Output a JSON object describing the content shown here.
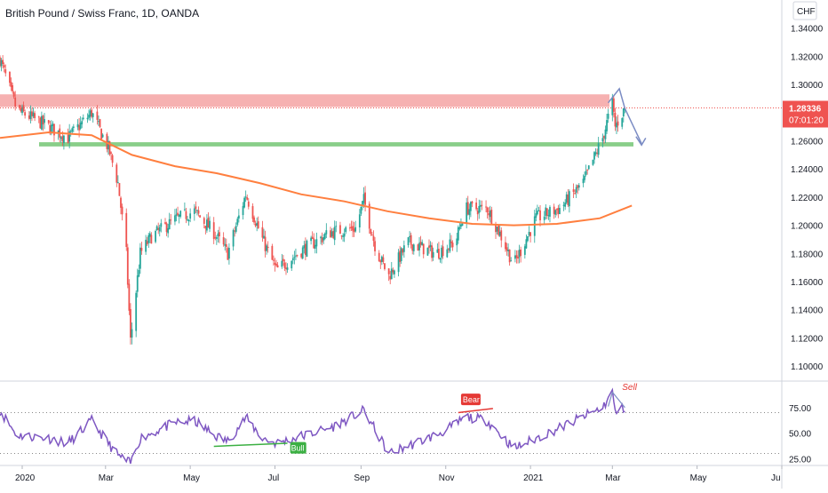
{
  "header": {
    "title": "British Pound / Swiss Franc, 1D, OANDA"
  },
  "price_axis": {
    "currency": "CHF",
    "tick_labels": [
      "1.34000",
      "1.32000",
      "1.30000",
      "1.28000",
      "1.26000",
      "1.24000",
      "1.22000",
      "1.20000",
      "1.18000",
      "1.16000",
      "1.14000",
      "1.12000",
      "1.10000"
    ],
    "current_price": "1.28336",
    "countdown": "07:01:20"
  },
  "rsi_axis": {
    "tick_labels": [
      "75.00",
      "50.00",
      "25.00"
    ]
  },
  "time_axis": {
    "labels": [
      "2020",
      "Mar",
      "May",
      "Jul",
      "Sep",
      "Nov",
      "2021",
      "Mar",
      "May",
      "Ju"
    ]
  },
  "annotations": {
    "bear": "Bear",
    "bull": "Bull",
    "sell": "Sell"
  },
  "colors": {
    "up": "#26a69a",
    "down": "#ef5350",
    "ma": "#ff7f3f",
    "resistance_zone": "#f5a3a3",
    "support_zone": "#7cc97c",
    "rsi": "#7e57c2",
    "arrow": "#7b8cc4",
    "price_tag": "#ef5350"
  },
  "chart_data": [
    {
      "type": "candlestick",
      "title": "British Pound / Swiss Franc, 1D, OANDA",
      "x": [
        "2020-01",
        "2020-03",
        "2020-05",
        "2020-07",
        "2020-09",
        "2020-11",
        "2021-01",
        "2021-03"
      ],
      "price_path": [
        {
          "date": "2019-12-16",
          "close": 1.318
        },
        {
          "date": "2019-12-28",
          "close": 1.282
        },
        {
          "date": "2020-01-20",
          "close": 1.27
        },
        {
          "date": "2020-02-03",
          "close": 1.262
        },
        {
          "date": "2020-02-20",
          "close": 1.28
        },
        {
          "date": "2020-03-03",
          "close": 1.255
        },
        {
          "date": "2020-03-10",
          "close": 1.23
        },
        {
          "date": "2020-03-16",
          "close": 1.18
        },
        {
          "date": "2020-03-19",
          "close": 1.118
        },
        {
          "date": "2020-03-26",
          "close": 1.18
        },
        {
          "date": "2020-04-03",
          "close": 1.192
        },
        {
          "date": "2020-04-20",
          "close": 1.204
        },
        {
          "date": "2020-05-04",
          "close": 1.21
        },
        {
          "date": "2020-05-18",
          "close": 1.195
        },
        {
          "date": "2020-05-28",
          "close": 1.18
        },
        {
          "date": "2020-06-10",
          "close": 1.222
        },
        {
          "date": "2020-06-22",
          "close": 1.19
        },
        {
          "date": "2020-07-02",
          "close": 1.168
        },
        {
          "date": "2020-07-20",
          "close": 1.182
        },
        {
          "date": "2020-08-10",
          "close": 1.195
        },
        {
          "date": "2020-08-28",
          "close": 1.198
        },
        {
          "date": "2020-09-03",
          "close": 1.218
        },
        {
          "date": "2020-09-12",
          "close": 1.182
        },
        {
          "date": "2020-09-21",
          "close": 1.164
        },
        {
          "date": "2020-10-05",
          "close": 1.188
        },
        {
          "date": "2020-10-25",
          "close": 1.18
        },
        {
          "date": "2020-11-08",
          "close": 1.188
        },
        {
          "date": "2020-11-15",
          "close": 1.212
        },
        {
          "date": "2020-12-01",
          "close": 1.212
        },
        {
          "date": "2020-12-12",
          "close": 1.19
        },
        {
          "date": "2020-12-20",
          "close": 1.172
        },
        {
          "date": "2021-01-05",
          "close": 1.205
        },
        {
          "date": "2021-01-22",
          "close": 1.212
        },
        {
          "date": "2021-02-08",
          "close": 1.23
        },
        {
          "date": "2021-02-22",
          "close": 1.262
        },
        {
          "date": "2021-03-01",
          "close": 1.287
        },
        {
          "date": "2021-03-03",
          "close": 1.27
        },
        {
          "date": "2021-03-10",
          "close": 1.283
        }
      ],
      "moving_average": [
        {
          "date": "2019-12-16",
          "value": 1.262
        },
        {
          "date": "2020-01-20",
          "value": 1.266
        },
        {
          "date": "2020-02-20",
          "value": 1.264
        },
        {
          "date": "2020-03-20",
          "value": 1.25
        },
        {
          "date": "2020-04-20",
          "value": 1.242
        },
        {
          "date": "2020-05-20",
          "value": 1.237
        },
        {
          "date": "2020-06-20",
          "value": 1.23
        },
        {
          "date": "2020-07-20",
          "value": 1.222
        },
        {
          "date": "2020-08-20",
          "value": 1.217
        },
        {
          "date": "2020-09-20",
          "value": 1.21
        },
        {
          "date": "2020-10-20",
          "value": 1.205
        },
        {
          "date": "2020-11-20",
          "value": 1.201
        },
        {
          "date": "2020-12-20",
          "value": 1.2
        },
        {
          "date": "2021-01-20",
          "value": 1.201
        },
        {
          "date": "2021-02-20",
          "value": 1.205
        },
        {
          "date": "2021-03-15",
          "value": 1.214
        }
      ],
      "zones": [
        {
          "label": "resistance",
          "from": 1.284,
          "to": 1.293
        },
        {
          "label": "support",
          "from": 1.256,
          "to": 1.259
        }
      ],
      "ylim": [
        1.09,
        1.36
      ],
      "last_price": 1.28336
    },
    {
      "type": "line",
      "title": "",
      "rsi_path": [
        {
          "date": "2019-12-16",
          "value": 72
        },
        {
          "date": "2019-12-28",
          "value": 48
        },
        {
          "date": "2020-01-20",
          "value": 45
        },
        {
          "date": "2020-02-03",
          "value": 40
        },
        {
          "date": "2020-02-20",
          "value": 62
        },
        {
          "date": "2020-03-03",
          "value": 40
        },
        {
          "date": "2020-03-10",
          "value": 28
        },
        {
          "date": "2020-03-19",
          "value": 20
        },
        {
          "date": "2020-03-26",
          "value": 45
        },
        {
          "date": "2020-04-20",
          "value": 60
        },
        {
          "date": "2020-05-04",
          "value": 62
        },
        {
          "date": "2020-05-18",
          "value": 48
        },
        {
          "date": "2020-05-28",
          "value": 42
        },
        {
          "date": "2020-06-10",
          "value": 65
        },
        {
          "date": "2020-06-22",
          "value": 45
        },
        {
          "date": "2020-07-02",
          "value": 40
        },
        {
          "date": "2020-08-10",
          "value": 55
        },
        {
          "date": "2020-09-03",
          "value": 72
        },
        {
          "date": "2020-09-21",
          "value": 30
        },
        {
          "date": "2020-10-25",
          "value": 48
        },
        {
          "date": "2020-11-08",
          "value": 58
        },
        {
          "date": "2020-11-15",
          "value": 66
        },
        {
          "date": "2020-12-01",
          "value": 62
        },
        {
          "date": "2020-12-20",
          "value": 35
        },
        {
          "date": "2021-01-22",
          "value": 55
        },
        {
          "date": "2021-02-22",
          "value": 75
        },
        {
          "date": "2021-03-01",
          "value": 90
        },
        {
          "date": "2021-03-03",
          "value": 70
        },
        {
          "date": "2021-03-10",
          "value": 75
        }
      ],
      "levels": [
        70,
        30
      ],
      "ylim": [
        20,
        100
      ],
      "labels": [
        "Bear",
        "Bull",
        "Sell"
      ]
    }
  ]
}
